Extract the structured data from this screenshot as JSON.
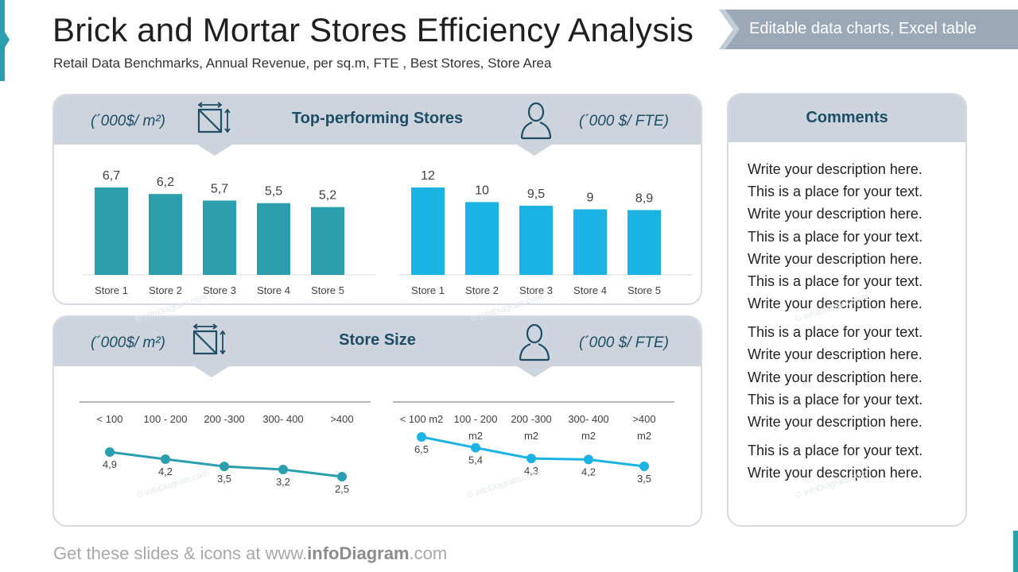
{
  "slide": {
    "title": "Brick and Mortar Stores Efficiency Analysis",
    "subtitle": "Retail Data Benchmarks, Annual Revenue, per sq.m, FTE , Best Stores, Store Area",
    "banner": "Editable data charts, Excel table",
    "footer_prefix": "Get these slides & icons at www.",
    "footer_brand": "infoDiagram",
    "footer_suffix": ".com",
    "watermark": "© infoDiagram.com"
  },
  "colors": {
    "teal_dark": "#2b9fae",
    "cyan": "#1ab3e3",
    "header_bg": "#cdd4de",
    "header_text": "#1d4e63",
    "banner_bg": "#9aa8b8"
  },
  "top_panel": {
    "title": "Top-performing Stores",
    "unit_left": "(´000$/ m²)",
    "unit_right": "(´000 $/ FTE)",
    "icon_left": "area-measure-icon",
    "icon_right": "person-icon"
  },
  "bottom_panel": {
    "title": "Store Size",
    "unit_left": "(´000$/ m²)",
    "unit_right": "(´000 $/ FTE)",
    "icon_left": "area-measure-icon",
    "icon_right": "person-icon"
  },
  "comments": {
    "title": "Comments",
    "lines": [
      "Write your description here.",
      "This is a place for your text.",
      "Write your description here.",
      "This is a place for your text.",
      "Write your description here.",
      "This is a place for your text.",
      "Write your description here.",
      "This is a place for your text.",
      "Write your description here.",
      "Write your description here.",
      "This is a place for your text.",
      "Write your description here.",
      "This is a place for your text.",
      "Write your description here."
    ]
  },
  "chart_data": [
    {
      "type": "bar",
      "categories": [
        "Store 1",
        "Store 2",
        "Store 3",
        "Store 4",
        "Store 5"
      ],
      "values": [
        6.7,
        6.2,
        5.7,
        5.5,
        5.2
      ],
      "labels": [
        "6,7",
        "6,2",
        "5,7",
        "5,5",
        "5,2"
      ],
      "color": "#2b9fae",
      "ylim": [
        0,
        6.7
      ]
    },
    {
      "type": "bar",
      "categories": [
        "Store 1",
        "Store 2",
        "Store 3",
        "Store 4",
        "Store 5"
      ],
      "values": [
        12,
        10,
        9.5,
        9,
        8.9
      ],
      "labels": [
        "12",
        "10",
        "9,5",
        "9",
        "8,9"
      ],
      "color": "#1ab3e3",
      "ylim": [
        0,
        12
      ]
    },
    {
      "type": "line",
      "categories": [
        "< 100",
        "100 - 200",
        "200 -300",
        "300- 400",
        ">400"
      ],
      "values": [
        4.9,
        4.2,
        3.5,
        3.2,
        2.5
      ],
      "labels": [
        "4,9",
        "4,2",
        "3,5",
        "3,2",
        "2,5"
      ],
      "color": "#2b9fae",
      "ylim": [
        2.5,
        4.9
      ]
    },
    {
      "type": "line",
      "categories": [
        "< 100 m2",
        "100 - 200 m2",
        "200 -300 m2",
        "300- 400 m2",
        ">400 m2"
      ],
      "values": [
        6.5,
        5.4,
        4.3,
        4.2,
        3.5
      ],
      "labels": [
        "6,5",
        "5,4",
        "4,3",
        "4,2",
        "3,5"
      ],
      "color": "#1ab3e3",
      "ylim": [
        3.5,
        6.5
      ]
    }
  ]
}
